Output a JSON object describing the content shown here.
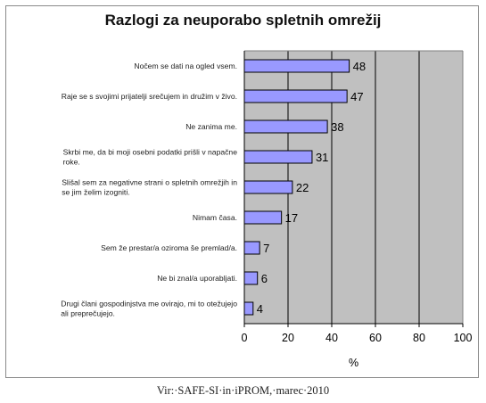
{
  "chart_data": {
    "type": "bar",
    "orientation": "horizontal",
    "title": "Razlogi za neuporabo spletnih omrežij",
    "xlabel": "%",
    "xlim": [
      0,
      100
    ],
    "xticks": [
      "0",
      "20",
      "40",
      "60",
      "80",
      "100"
    ],
    "grid": true,
    "plot_background": "#c0c0c0",
    "bar_color": "#9999ff",
    "categories": [
      [
        "Nočem se dati na ogled vsem."
      ],
      [
        "Raje se s svojimi prijatelji srečujem in družim v živo."
      ],
      [
        "Ne zanima me."
      ],
      [
        "Skrbi me, da bi moji osebni podatki prišli v napačne",
        "roke."
      ],
      [
        "Slišal sem za negativne strani o spletnih omrežjih in",
        "se jim želim izogniti."
      ],
      [
        "Nimam časa."
      ],
      [
        "Sem že prestar/a oziroma še premlad/a."
      ],
      [
        "Ne bi znal/a uporabljati."
      ],
      [
        "Drugi člani gospodinjstva me ovirajo, mi to otežujejo",
        "ali preprečujejo."
      ]
    ],
    "values": [
      48,
      47,
      38,
      31,
      22,
      17,
      7,
      6,
      4
    ]
  },
  "source": "Vir:·SAFE-SI·in·iPROM,·marec·2010"
}
